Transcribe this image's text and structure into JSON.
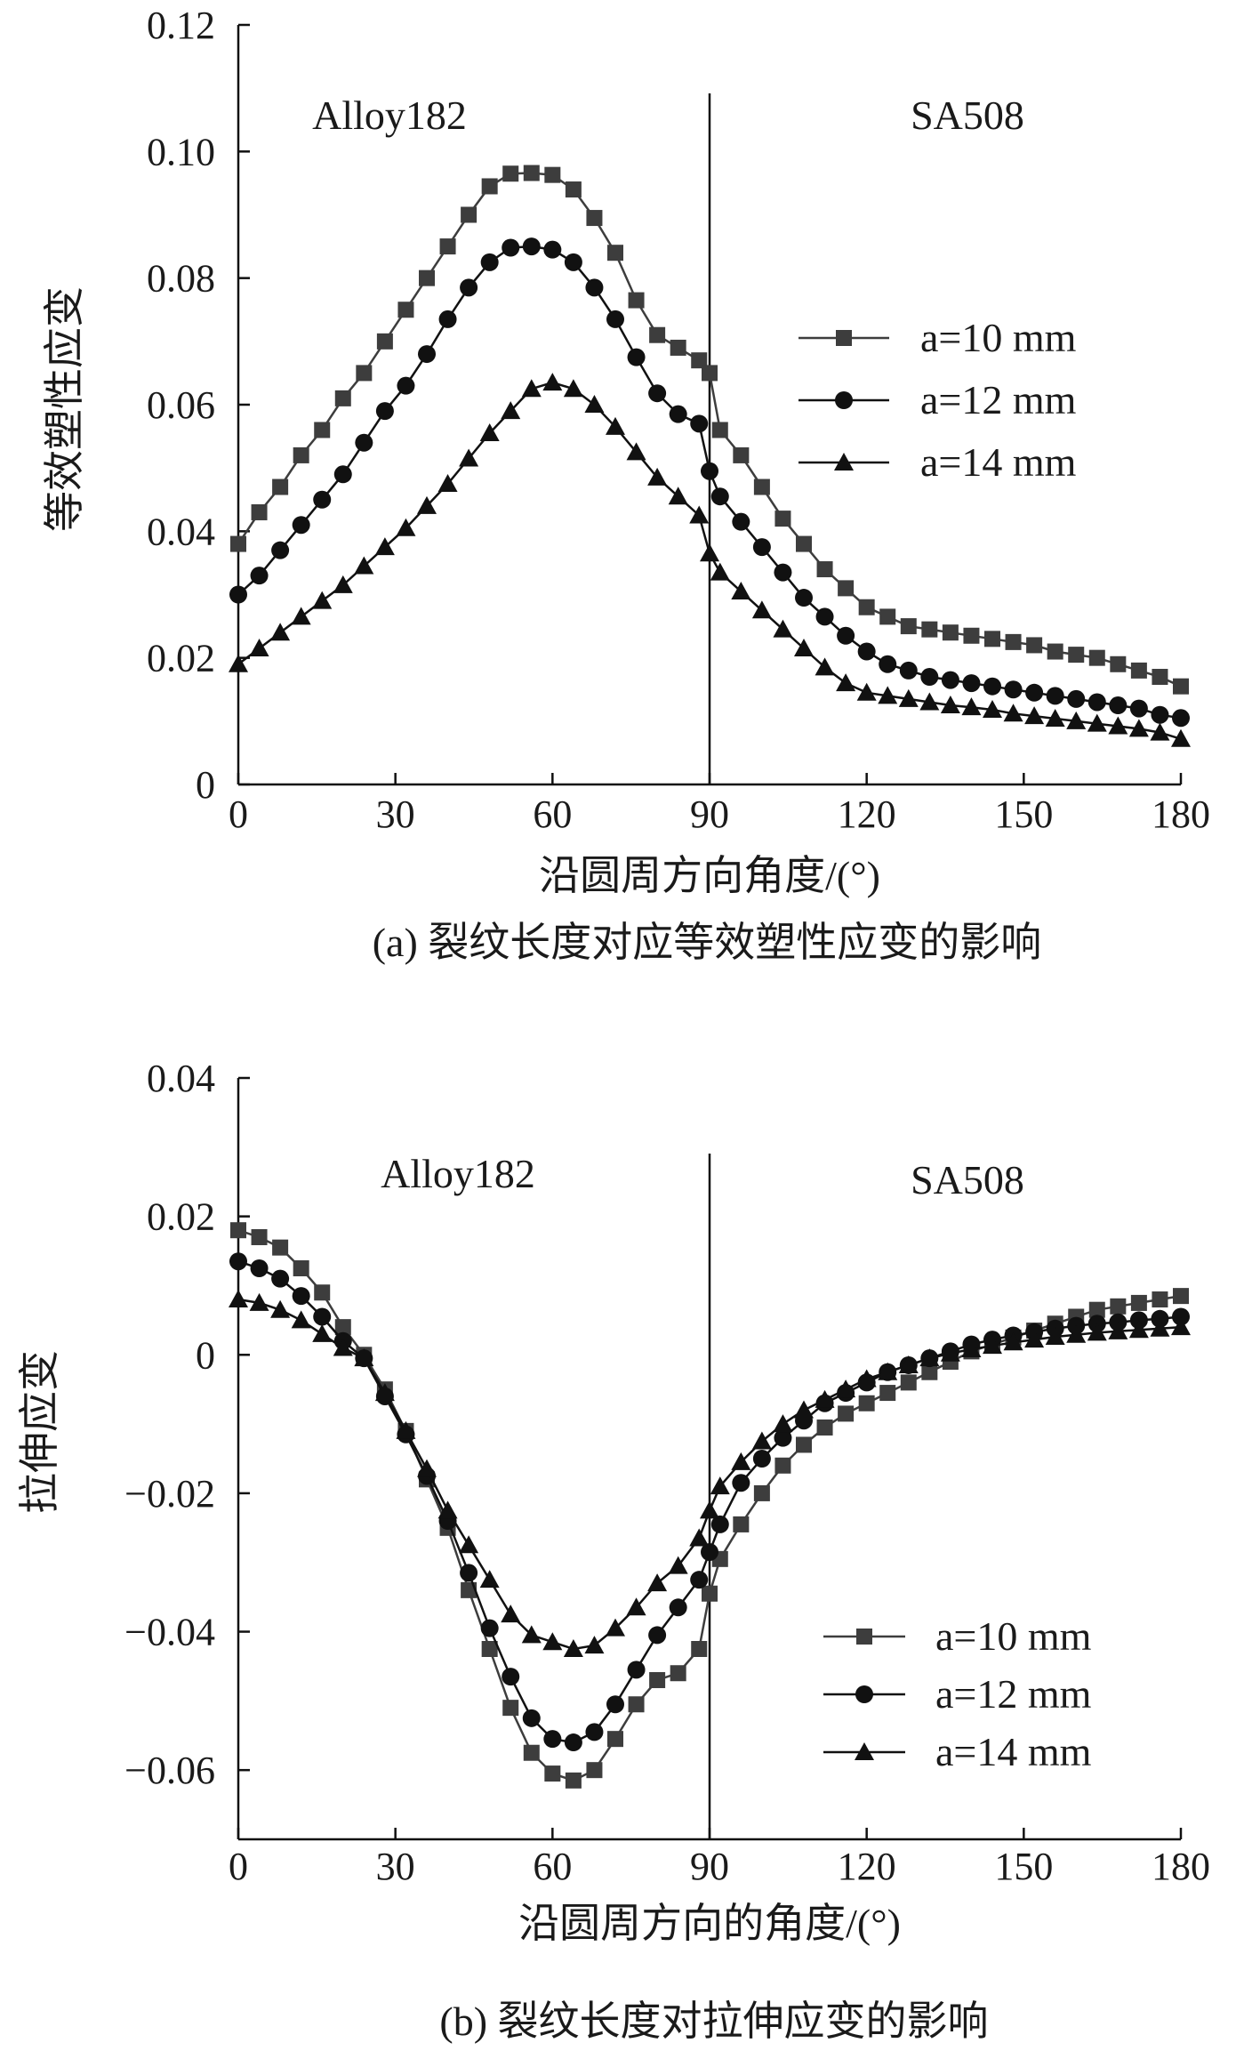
{
  "chart_data": [
    {
      "type": "line",
      "caption": "(a) 裂纹长度对应等效塑性应变的影响",
      "xlabel": "沿圆周方向角度/(°)",
      "ylabel": "等效塑性应变",
      "xlim": [
        0,
        180
      ],
      "ylim": [
        0,
        0.12
      ],
      "xticks": [
        0,
        30,
        60,
        90,
        120,
        150,
        180
      ],
      "xtick_labels": [
        "0",
        "30",
        "60",
        "90",
        "120",
        "150",
        "180"
      ],
      "yticks": [
        0,
        0.02,
        0.04,
        0.06,
        0.08,
        0.1,
        0.12
      ],
      "ytick_labels": [
        "0",
        "0.02",
        "0.04",
        "0.06",
        "0.08",
        "0.10",
        "0.12"
      ],
      "divider_x": 90,
      "region_labels": {
        "left": "Alloy182",
        "right": "SA508"
      },
      "legend": {
        "entries": [
          "a=10 mm",
          "a=12 mm",
          "a=14 mm"
        ],
        "placement": "right"
      },
      "x": [
        0,
        4,
        8,
        12,
        16,
        20,
        24,
        28,
        32,
        36,
        40,
        44,
        48,
        52,
        56,
        60,
        64,
        68,
        72,
        76,
        80,
        84,
        88,
        90,
        92,
        96,
        100,
        104,
        108,
        112,
        116,
        120,
        124,
        128,
        132,
        136,
        140,
        144,
        148,
        152,
        156,
        160,
        164,
        168,
        172,
        176,
        180
      ],
      "series": [
        {
          "name": "a=10 mm",
          "marker": "square",
          "values": [
            0.038,
            0.043,
            0.047,
            0.052,
            0.056,
            0.061,
            0.065,
            0.07,
            0.075,
            0.08,
            0.085,
            0.09,
            0.0945,
            0.0965,
            0.0966,
            0.0963,
            0.094,
            0.0895,
            0.084,
            0.0765,
            0.071,
            0.069,
            0.067,
            0.065,
            0.056,
            0.052,
            0.047,
            0.042,
            0.038,
            0.034,
            0.031,
            0.028,
            0.0265,
            0.025,
            0.0245,
            0.024,
            0.0235,
            0.023,
            0.0225,
            0.022,
            0.021,
            0.0205,
            0.02,
            0.019,
            0.018,
            0.017,
            0.0155
          ]
        },
        {
          "name": "a=12 mm",
          "marker": "circle",
          "values": [
            0.03,
            0.033,
            0.037,
            0.041,
            0.045,
            0.049,
            0.054,
            0.059,
            0.063,
            0.068,
            0.0735,
            0.0785,
            0.0825,
            0.0848,
            0.085,
            0.0845,
            0.0825,
            0.0785,
            0.0735,
            0.0675,
            0.0618,
            0.0585,
            0.057,
            0.0495,
            0.0455,
            0.0415,
            0.0375,
            0.0335,
            0.0295,
            0.0265,
            0.0235,
            0.021,
            0.019,
            0.018,
            0.017,
            0.0165,
            0.016,
            0.0155,
            0.015,
            0.0145,
            0.014,
            0.0135,
            0.013,
            0.0125,
            0.012,
            0.011,
            0.0105
          ]
        },
        {
          "name": "a=14 mm",
          "marker": "triangle",
          "values": [
            0.019,
            0.0215,
            0.024,
            0.0265,
            0.029,
            0.0315,
            0.0345,
            0.0375,
            0.0405,
            0.044,
            0.0475,
            0.0515,
            0.0555,
            0.059,
            0.0625,
            0.0635,
            0.0625,
            0.06,
            0.0565,
            0.0525,
            0.0485,
            0.0455,
            0.0425,
            0.0365,
            0.0335,
            0.0305,
            0.0275,
            0.0245,
            0.0215,
            0.0185,
            0.016,
            0.0145,
            0.014,
            0.0135,
            0.013,
            0.0125,
            0.0122,
            0.0118,
            0.0112,
            0.0108,
            0.0104,
            0.01,
            0.0096,
            0.0092,
            0.0088,
            0.0082,
            0.0072
          ]
        }
      ]
    },
    {
      "type": "line",
      "caption": "(b) 裂纹长度对拉伸应变的影响",
      "xlabel": "沿圆周方向的角度/(°)",
      "ylabel": "拉伸应变",
      "xlim": [
        0,
        180
      ],
      "ylim": [
        -0.07,
        0.04
      ],
      "xticks": [
        0,
        30,
        60,
        90,
        120,
        150,
        180
      ],
      "xtick_labels": [
        "0",
        "30",
        "60",
        "90",
        "120",
        "150",
        "180"
      ],
      "yticks": [
        -0.06,
        -0.04,
        -0.02,
        0,
        0.02,
        0.04
      ],
      "ytick_labels": [
        "−0.06",
        "−0.04",
        "−0.02",
        "0",
        "0.02",
        "0.04"
      ],
      "divider_x": 90,
      "region_labels": {
        "left": "Alloy182",
        "right": "SA508"
      },
      "legend": {
        "entries": [
          "a=10 mm",
          "a=12 mm",
          "a=14 mm"
        ],
        "placement": "bottom-right"
      },
      "x": [
        0,
        4,
        8,
        12,
        16,
        20,
        24,
        28,
        32,
        36,
        40,
        44,
        48,
        52,
        56,
        60,
        64,
        68,
        72,
        76,
        80,
        84,
        88,
        90,
        92,
        96,
        100,
        104,
        108,
        112,
        116,
        120,
        124,
        128,
        132,
        136,
        140,
        144,
        148,
        152,
        156,
        160,
        164,
        168,
        172,
        176,
        180
      ],
      "series": [
        {
          "name": "a=10 mm",
          "marker": "square",
          "values": [
            0.018,
            0.017,
            0.0155,
            0.0125,
            0.009,
            0.004,
            0,
            -0.005,
            -0.011,
            -0.018,
            -0.025,
            -0.034,
            -0.0425,
            -0.051,
            -0.0575,
            -0.0605,
            -0.0615,
            -0.06,
            -0.0555,
            -0.0505,
            -0.047,
            -0.046,
            -0.0425,
            -0.0345,
            -0.0295,
            -0.0245,
            -0.02,
            -0.016,
            -0.013,
            -0.0105,
            -0.0085,
            -0.007,
            -0.0055,
            -0.004,
            -0.0025,
            -0.001,
            0.0005,
            0.0015,
            0.0025,
            0.0035,
            0.0045,
            0.0055,
            0.0065,
            0.007,
            0.0075,
            0.008,
            0.0085
          ]
        },
        {
          "name": "a=12 mm",
          "marker": "circle",
          "values": [
            0.0135,
            0.0125,
            0.011,
            0.0085,
            0.0055,
            0.002,
            -0.0005,
            -0.006,
            -0.0115,
            -0.0175,
            -0.024,
            -0.0315,
            -0.0395,
            -0.0465,
            -0.0525,
            -0.0555,
            -0.056,
            -0.0545,
            -0.0505,
            -0.0455,
            -0.0405,
            -0.0365,
            -0.0325,
            -0.0285,
            -0.0245,
            -0.0185,
            -0.015,
            -0.012,
            -0.0095,
            -0.007,
            -0.0055,
            -0.004,
            -0.0025,
            -0.0015,
            -0.0005,
            0.0005,
            0.0015,
            0.0022,
            0.0028,
            0.0033,
            0.0038,
            0.0042,
            0.0045,
            0.0047,
            0.005,
            0.0052,
            0.0055
          ]
        },
        {
          "name": "a=14 mm",
          "marker": "triangle",
          "values": [
            0.008,
            0.0075,
            0.0065,
            0.005,
            0.003,
            0.001,
            -0.0005,
            -0.0055,
            -0.011,
            -0.0165,
            -0.0225,
            -0.0275,
            -0.0325,
            -0.0375,
            -0.0405,
            -0.0415,
            -0.0425,
            -0.042,
            -0.0395,
            -0.0365,
            -0.033,
            -0.0305,
            -0.0265,
            -0.0225,
            -0.019,
            -0.0155,
            -0.0125,
            -0.01,
            -0.008,
            -0.0065,
            -0.005,
            -0.0035,
            -0.0025,
            -0.0015,
            -0.0005,
            0.0002,
            0.0008,
            0.0013,
            0.0018,
            0.0022,
            0.0026,
            0.0029,
            0.0032,
            0.0034,
            0.0036,
            0.0038,
            0.004
          ]
        }
      ]
    }
  ]
}
